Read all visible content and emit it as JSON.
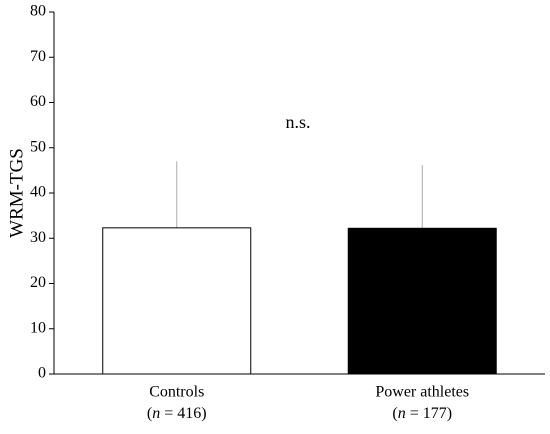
{
  "chart_data": {
    "type": "bar",
    "ylabel": "WRM-TGS",
    "categories": [
      "Controls",
      "Power athletes"
    ],
    "category_notes": [
      "(n = 416)",
      "(n = 177)"
    ],
    "values": [
      32.3,
      32.2
    ],
    "errors": [
      14.7,
      14.0
    ],
    "colors": [
      "#ffffff",
      "#000000"
    ],
    "annotation": "n.s.",
    "ylim": [
      0,
      80
    ],
    "yticks": [
      0,
      10,
      20,
      30,
      40,
      50,
      60,
      70,
      80
    ]
  }
}
